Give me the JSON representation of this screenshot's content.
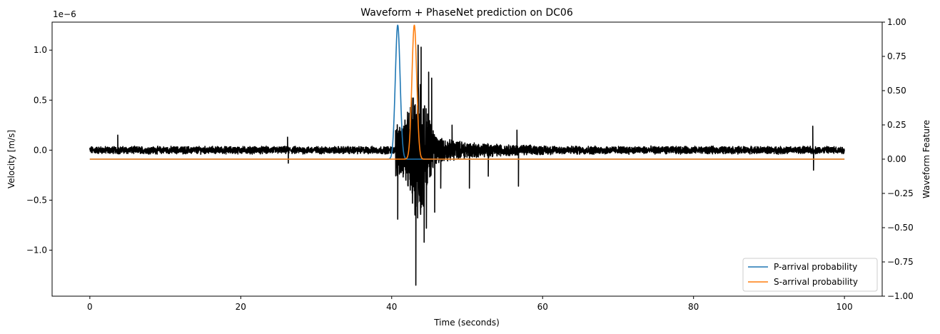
{
  "chart_data": {
    "type": "line",
    "title": "Waveform + PhaseNet prediction on DC06",
    "xlabel": "Time (seconds)",
    "ylabel": "Velocity [m/s]",
    "ylabel_right": "Waveform Feature",
    "offset_text": "1e−6",
    "xlim": [
      -5,
      105
    ],
    "ylim": [
      -1.46,
      1.28
    ],
    "ylim_right": [
      -1.0,
      1.0
    ],
    "x_ticks": [
      "0",
      "20",
      "40",
      "60",
      "80",
      "100"
    ],
    "y_ticks": [
      "−1.0",
      "−0.5",
      "0.0",
      "0.5",
      "1.0"
    ],
    "y_ticks_right": [
      "−1.00",
      "−0.75",
      "−0.50",
      "−0.25",
      "0.00",
      "0.25",
      "0.50",
      "0.75",
      "1.00"
    ],
    "waveform": {
      "name": "",
      "color": "#000000",
      "x_range": [
        0,
        100
      ],
      "noise_amplitude": 0.03,
      "peaks": [
        {
          "x": 40.8,
          "y": -0.69
        },
        {
          "x": 42.1,
          "y": 0.38
        },
        {
          "x": 43.2,
          "y": -1.35
        },
        {
          "x": 43.5,
          "y": 1.05
        },
        {
          "x": 43.9,
          "y": 1.03
        },
        {
          "x": 44.3,
          "y": -0.92
        },
        {
          "x": 44.6,
          "y": -0.78
        },
        {
          "x": 44.9,
          "y": 0.78
        },
        {
          "x": 45.3,
          "y": 0.72
        },
        {
          "x": 45.7,
          "y": -0.62
        },
        {
          "x": 46.5,
          "y": -0.38
        },
        {
          "x": 48.0,
          "y": 0.25
        },
        {
          "x": 50.3,
          "y": -0.38
        },
        {
          "x": 52.8,
          "y": -0.26
        },
        {
          "x": 56.6,
          "y": 0.2
        },
        {
          "x": 56.8,
          "y": -0.36
        },
        {
          "x": 3.7,
          "y": 0.15
        },
        {
          "x": 26.2,
          "y": 0.13
        },
        {
          "x": 26.3,
          "y": -0.13
        },
        {
          "x": 95.8,
          "y": 0.24
        },
        {
          "x": 95.9,
          "y": -0.2
        }
      ]
    },
    "series": [
      {
        "name": "P-arrival probability",
        "color": "#1f77b4",
        "center": 40.8,
        "width": 0.45,
        "peak": 0.98,
        "baseline": 0.0
      },
      {
        "name": "S-arrival probability",
        "color": "#ff7f0e",
        "center": 43.0,
        "width": 0.45,
        "peak": 0.98,
        "baseline": 0.0
      }
    ],
    "legend_position": "lower-right",
    "grid": false
  }
}
